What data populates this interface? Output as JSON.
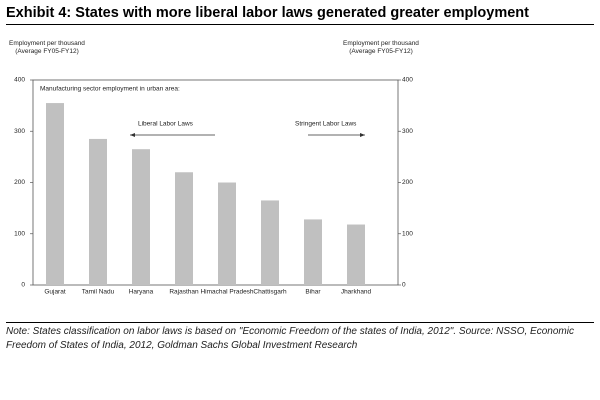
{
  "chart_data": {
    "type": "bar",
    "title": "Exhibit 4: States with more liberal labor laws generated greater employment",
    "y_label": "Employment per thousand (Average FY05-FY12)",
    "y2_label": "Employment per thousand (Average FY05-FY12)",
    "annotations": [
      "Manufacturing sector employment in urban area:",
      "Liberal Labor Laws",
      "Stringent Labor Laws"
    ],
    "categories": [
      "Gujarat",
      "Tamil Nadu",
      "Haryana",
      "Rajasthan",
      "Himachal Pradesh",
      "Chattisgarh",
      "Bihar",
      "Jharkhand"
    ],
    "values": [
      355,
      285,
      265,
      220,
      200,
      165,
      128,
      118
    ],
    "color": "#c0c0c0",
    "ylim": [
      0,
      400
    ],
    "yticks": [
      0,
      100,
      200,
      300,
      400
    ],
    "y2lim": [
      0,
      400
    ],
    "y2ticks": [
      0,
      100,
      200,
      300,
      400
    ],
    "note": "Note: States classification on labor laws is based on \"Economic Freedom of the states of India, 2012\". Source: NSSO, Economic Freedom of States of India, 2012, Goldman Sachs Global Investment Research"
  }
}
